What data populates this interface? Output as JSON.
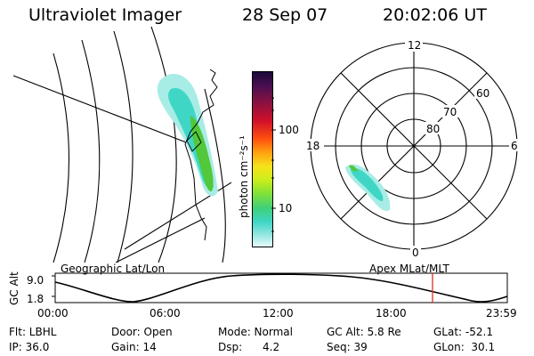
{
  "header": {
    "instrument": "Ultraviolet Imager",
    "date": "28 Sep 07",
    "time": "20:02:06 UT"
  },
  "colorbar": {
    "unit_label": "photon cm⁻²s⁻¹",
    "ticks": [
      "100",
      "10"
    ]
  },
  "polar": {
    "lat_labels": [
      "80",
      "70",
      "60"
    ],
    "mlt_labels": {
      "top": "12",
      "bottom": "0",
      "left": "18",
      "right": "6"
    }
  },
  "geo_title": "Geographic Lat/Lon",
  "apex_title": "Apex MLat/MLT",
  "orbit": {
    "axis_label": "GC Alt",
    "y_ticks": [
      "9.0",
      "1.8"
    ],
    "x_ticks": [
      "00:00",
      "06:00",
      "12:00",
      "18:00",
      "23:59"
    ],
    "current_time_marker_hours": 20.03
  },
  "status": {
    "filter": "Flt: LBHL",
    "ip": "IP: 36.0",
    "door": "Door: Open",
    "gain": "Gain: 14",
    "mode": "Mode: Normal",
    "dsp": "Dsp:      4.2",
    "gc_alt": "GC Alt: 5.8 Re",
    "seq": "Seq: 39",
    "glat": "GLat: -52.1",
    "glon": "GLon:  30.1"
  },
  "colors": {
    "marker": "#e0301e",
    "aurora_low": "#9fe8e4",
    "aurora_mid": "#3fd6c6",
    "aurora_high": "#52c83a"
  }
}
